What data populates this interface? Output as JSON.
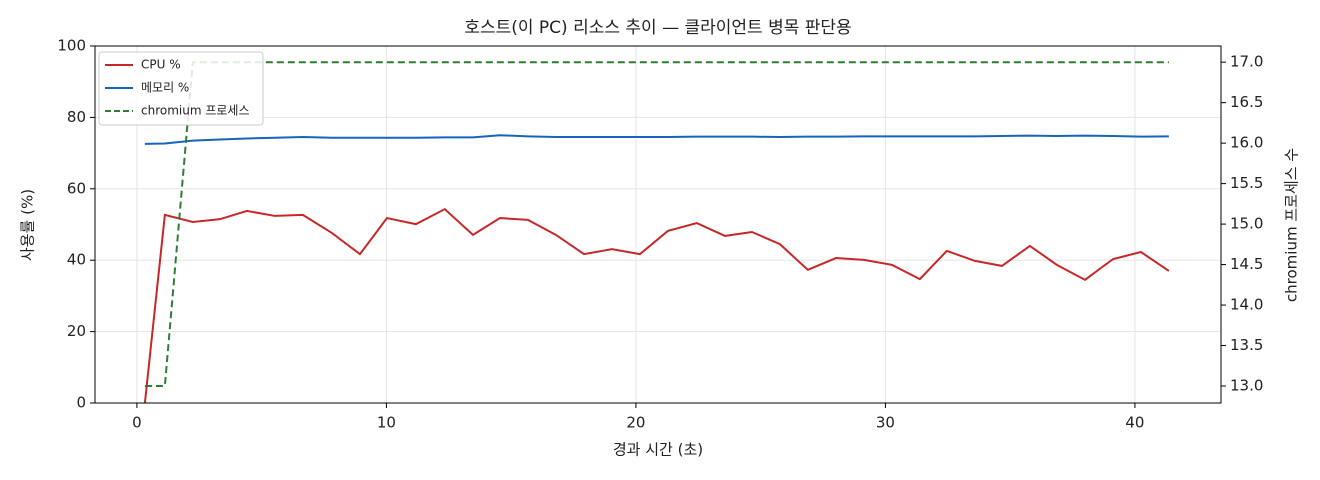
{
  "chart_data": {
    "type": "line",
    "title": "호스트(이 PC) 리소스 추이 — 클라이언트 병목 판단용",
    "x_label": "경과 시간 (초)",
    "y_label": "사용률 (%)",
    "y2_label": "chromium 프로세스 수",
    "x": [
      0.32,
      1.12,
      2.24,
      3.33,
      4.41,
      5.53,
      6.65,
      7.82,
      8.94,
      10.02,
      11.18,
      12.34,
      13.47,
      14.55,
      15.67,
      16.79,
      17.92,
      19.04,
      20.16,
      21.28,
      22.44,
      23.57,
      24.65,
      25.77,
      26.89,
      28.02,
      29.14,
      30.26,
      31.38,
      32.46,
      33.59,
      34.67,
      35.79,
      36.87,
      38.0,
      39.12,
      40.24,
      41.36
    ],
    "series": [
      {
        "name": "CPU %",
        "color": "#c62828",
        "style": "solid",
        "values": [
          0,
          52.7,
          50.7,
          51.5,
          53.8,
          52.4,
          52.7,
          47.6,
          41.7,
          51.8,
          50.1,
          54.3,
          47.1,
          51.8,
          51.3,
          47.1,
          41.7,
          43.1,
          41.7,
          48.2,
          50.4,
          46.8,
          47.9,
          44.5,
          37.3,
          40.6,
          40.1,
          38.7,
          34.7,
          42.6,
          39.8,
          38.4,
          44.0,
          38.7,
          34.5,
          40.3,
          42.3,
          37.0
        ]
      },
      {
        "name": "메모리 %",
        "color": "#1565c0",
        "style": "solid",
        "values": [
          72.6,
          72.7,
          73.5,
          73.8,
          74.1,
          74.3,
          74.5,
          74.3,
          74.3,
          74.3,
          74.3,
          74.4,
          74.4,
          75.0,
          74.7,
          74.5,
          74.5,
          74.5,
          74.5,
          74.5,
          74.6,
          74.6,
          74.6,
          74.5,
          74.6,
          74.6,
          74.7,
          74.7,
          74.7,
          74.7,
          74.7,
          74.8,
          74.9,
          74.8,
          74.9,
          74.8,
          74.6,
          74.7
        ]
      },
      {
        "name": "chromium 프로세스",
        "color": "#2e7d32",
        "style": "dashed",
        "axis": "y2",
        "values": [
          13,
          13,
          17,
          17,
          17,
          17,
          17,
          17,
          17,
          17,
          17,
          17,
          17,
          17,
          17,
          17,
          17,
          17,
          17,
          17,
          17,
          17,
          17,
          17,
          17,
          17,
          17,
          17,
          17,
          17,
          17,
          17,
          17,
          17,
          17,
          17,
          17,
          17
        ]
      }
    ],
    "xlim": [
      -1.68,
      43.45
    ],
    "xticks": [
      0,
      10,
      20,
      30,
      40
    ],
    "ylim": [
      0,
      100
    ],
    "yticks": [
      0,
      20,
      40,
      60,
      80,
      100
    ],
    "y2lim": [
      12.79,
      17.2
    ],
    "y2ticks": [
      {
        "value": 13,
        "label": "13.0"
      },
      {
        "value": 13.5,
        "label": "13.5"
      },
      {
        "value": 14,
        "label": "14.0"
      },
      {
        "value": 14.5,
        "label": "14.5"
      },
      {
        "value": 15,
        "label": "15.0"
      },
      {
        "value": 15.5,
        "label": "15.5"
      },
      {
        "value": 16,
        "label": "16.0"
      },
      {
        "value": 16.5,
        "label": "16.5"
      },
      {
        "value": 17,
        "label": "17.0"
      }
    ],
    "grid": true,
    "legend": "upper left"
  }
}
